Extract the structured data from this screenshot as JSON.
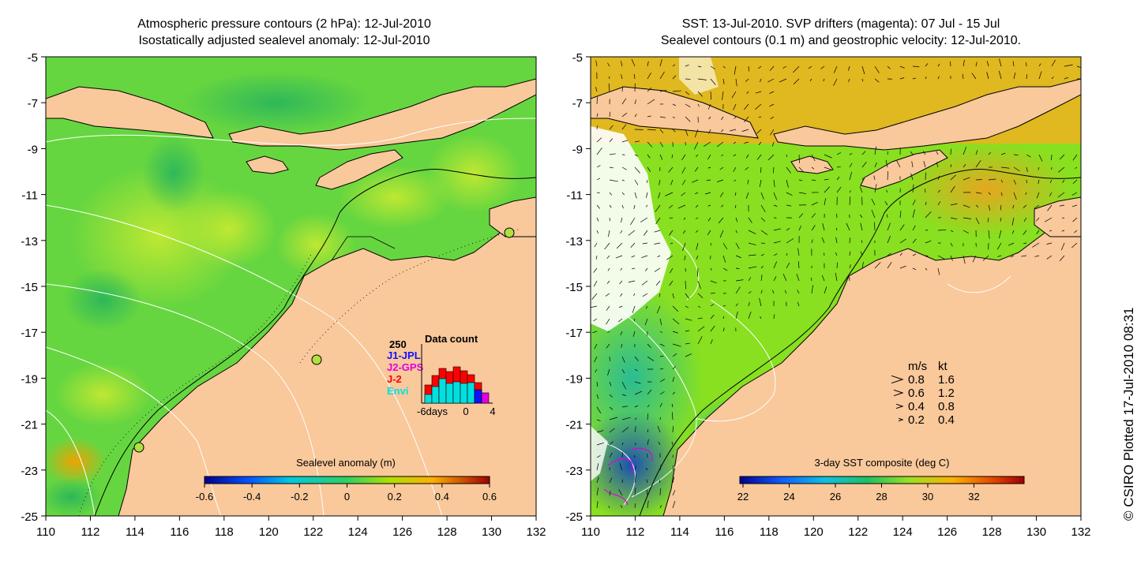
{
  "left_panel": {
    "title_line1": "Atmospheric pressure contours (2 hPa): 12-Jul-2010",
    "title_line2": "Isostatically adjusted sealevel anomaly: 12-Jul-2010",
    "colorbar_title": "Sealevel anomaly (m)",
    "colorbar_ticks": [
      "-0.6",
      "-0.4",
      "-0.2",
      "0",
      "0.2",
      "0.4",
      "0.6"
    ],
    "histogram": {
      "title": "Data count",
      "ymax_label": "250",
      "legend": [
        {
          "label": "J1-JPL",
          "color": "#1010ff"
        },
        {
          "label": "J2-GPS",
          "color": "#e000e0"
        },
        {
          "label": "J-2",
          "color": "#ff0000"
        },
        {
          "label": "Envi",
          "color": "#00e0e0"
        }
      ],
      "xlabel_left": "-6days",
      "xlabel_mid": "0",
      "xlabel_right": "4"
    }
  },
  "right_panel": {
    "title_line1": "SST: 13-Jul-2010. SVP drifters (magenta): 07 Jul - 15 Jul",
    "title_line2": "Sealevel contours (0.1 m) and geostrophic velocity: 12-Jul-2010.",
    "colorbar_title": "3-day SST composite (deg C)",
    "colorbar_ticks": [
      "22",
      "24",
      "26",
      "28",
      "30",
      "32"
    ],
    "velocity_legend": {
      "header_ms": "m/s",
      "header_kt": "kt",
      "rows": [
        {
          "ms": "0.8",
          "kt": "1.6"
        },
        {
          "ms": "0.6",
          "kt": "1.2"
        },
        {
          "ms": "0.4",
          "kt": "0.8"
        },
        {
          "ms": "0.2",
          "kt": "0.4"
        }
      ]
    }
  },
  "axes": {
    "y_ticks": [
      "-5",
      "-7",
      "-9",
      "-11",
      "-13",
      "-15",
      "-17",
      "-19",
      "-21",
      "-23",
      "-25"
    ],
    "x_ticks": [
      "110",
      "112",
      "114",
      "116",
      "118",
      "120",
      "122",
      "124",
      "126",
      "128",
      "130",
      "132"
    ]
  },
  "credit": "© CSIRO Plotted 17-Jul-2010 08:31",
  "colors": {
    "land": "#f9c89b",
    "ocean_left": "#66d640",
    "ocean_right": "#88e020"
  }
}
